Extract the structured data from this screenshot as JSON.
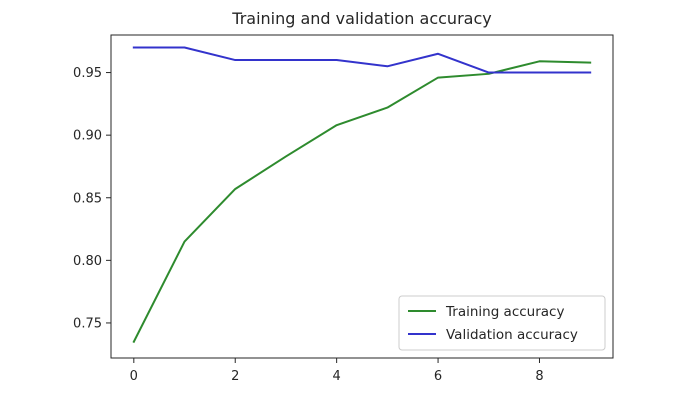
{
  "chart_data": {
    "type": "line",
    "title": "Training and validation accuracy",
    "xlabel": "",
    "ylabel": "",
    "x": [
      0,
      1,
      2,
      3,
      4,
      5,
      6,
      7,
      8,
      9
    ],
    "xlim": [
      -0.45,
      9.45
    ],
    "ylim": [
      0.722,
      0.98
    ],
    "xticks": [
      0,
      2,
      4,
      6,
      8
    ],
    "xtick_labels": [
      "0",
      "2",
      "4",
      "6",
      "8"
    ],
    "yticks": [
      0.75,
      0.8,
      0.85,
      0.9,
      0.95
    ],
    "ytick_labels": [
      "0.75",
      "0.80",
      "0.85",
      "0.90",
      "0.95"
    ],
    "grid": false,
    "legend_position": "lower-right",
    "series": [
      {
        "name": "Training accuracy",
        "color": "#2e8b2e",
        "values": [
          0.735,
          0.815,
          0.857,
          0.883,
          0.908,
          0.922,
          0.946,
          0.949,
          0.959,
          0.958
        ]
      },
      {
        "name": "Validation accuracy",
        "color": "#3333cc",
        "values": [
          0.97,
          0.97,
          0.96,
          0.96,
          0.96,
          0.955,
          0.965,
          0.95,
          0.95,
          0.95
        ]
      }
    ]
  }
}
